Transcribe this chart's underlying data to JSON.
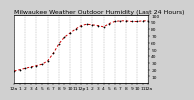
{
  "title": "Milwaukee Weather Outdoor Humidity (Last 24 Hours)",
  "background_color": "#d0d0d0",
  "plot_bg_color": "#ffffff",
  "line_color": "#cc0000",
  "marker_color": "#000000",
  "grid_color": "#888888",
  "ylim": [
    0,
    100
  ],
  "x_hours": [
    0,
    1,
    2,
    3,
    4,
    5,
    6,
    7,
    8,
    9,
    10,
    11,
    12,
    13,
    14,
    15,
    16,
    17,
    18,
    19,
    20,
    21,
    22,
    23,
    24
  ],
  "humidity": [
    18,
    20,
    22,
    24,
    26,
    28,
    33,
    44,
    58,
    68,
    74,
    80,
    85,
    87,
    86,
    85,
    83,
    88,
    91,
    92,
    92,
    91,
    91,
    92,
    92
  ],
  "ytick_positions": [
    10,
    20,
    30,
    40,
    50,
    60,
    70,
    80,
    90,
    100
  ],
  "ytick_labels": [
    "10",
    "20",
    "30",
    "40",
    "50",
    "60",
    "70",
    "80",
    "90",
    "100"
  ],
  "xtick_positions": [
    0,
    1,
    2,
    3,
    4,
    5,
    6,
    7,
    8,
    9,
    10,
    11,
    12,
    13,
    14,
    15,
    16,
    17,
    18,
    19,
    20,
    21,
    22,
    23,
    24
  ],
  "xtick_labels": [
    "12a",
    "1",
    "2",
    "3",
    "4",
    "5",
    "6",
    "7",
    "8",
    "9",
    "10",
    "11",
    "12p",
    "1",
    "2",
    "3",
    "4",
    "5",
    "6",
    "7",
    "8",
    "9",
    "10",
    "11",
    "12a"
  ],
  "vgrid_positions": [
    0,
    2,
    4,
    6,
    8,
    10,
    12,
    14,
    16,
    18,
    20,
    22,
    24
  ],
  "title_fontsize": 4.5,
  "tick_fontsize": 3.2,
  "line_width": 0.7,
  "marker_size": 1.0
}
